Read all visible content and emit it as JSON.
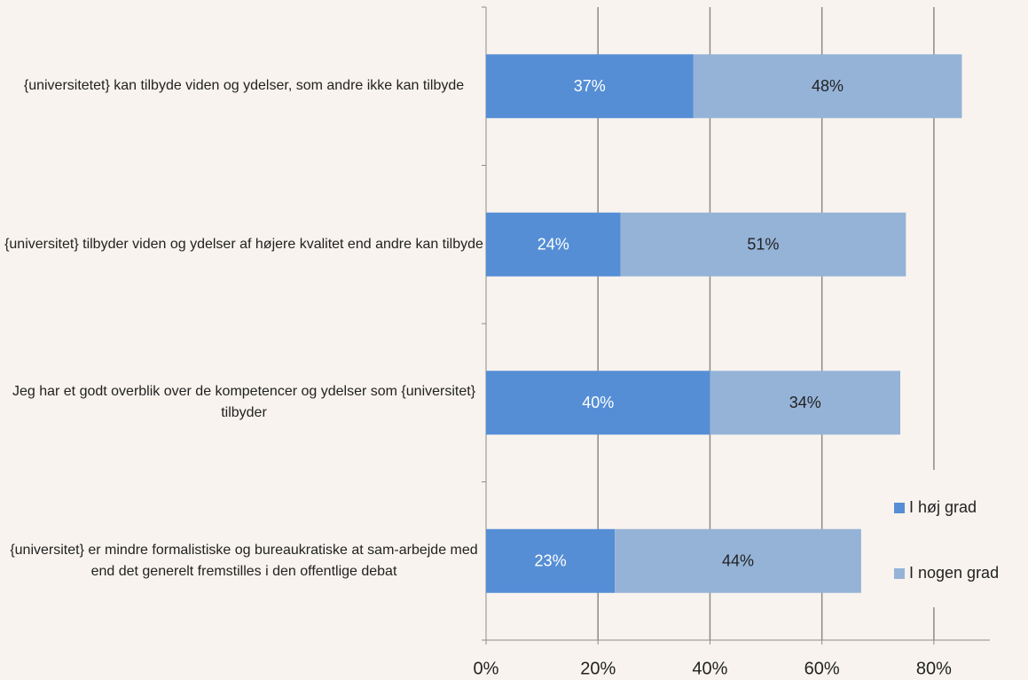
{
  "chart_data": {
    "type": "stacked_bar_horizontal",
    "categories": [
      "{universitetet} kan tilbyde viden og ydelser, som andre ikke kan tilbyde",
      "{universitet} tilbyder viden og ydelser af højere kvalitet end andre kan tilbyde",
      "Jeg har et godt overblik over de kompetencer og ydelser som {universitet} tilbyder",
      "{universitet} er mindre formalistiske og bureaukratiske at sam-arbejde med end det generelt fremstilles i den offentlige debat"
    ],
    "series": [
      {
        "name": "I høj grad",
        "color": "#558ed5",
        "values": [
          37,
          24,
          40,
          23
        ],
        "value_labels": [
          "37%",
          "24%",
          "40%",
          "23%"
        ]
      },
      {
        "name": "I nogen grad",
        "color": "#95b3d7",
        "values": [
          48,
          51,
          34,
          44
        ],
        "value_labels": [
          "48%",
          "51%",
          "34%",
          "44%"
        ]
      }
    ],
    "xlim": [
      0,
      90
    ],
    "xticks": [
      {
        "value": 0,
        "label": "0%"
      },
      {
        "value": 20,
        "label": "20%"
      },
      {
        "value": 40,
        "label": "40%"
      },
      {
        "value": 60,
        "label": "60%"
      },
      {
        "value": 80,
        "label": "80%"
      }
    ],
    "grid": true,
    "legend": "right"
  }
}
